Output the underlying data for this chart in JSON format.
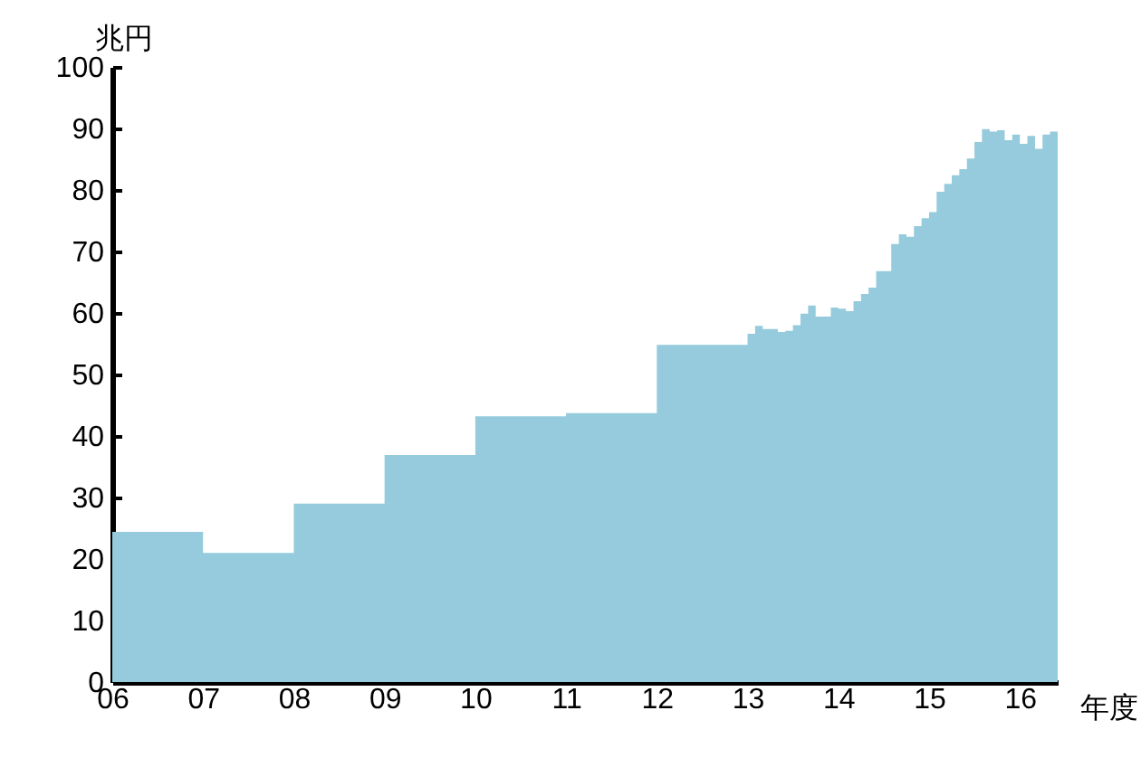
{
  "chart_data": {
    "type": "area",
    "xlabel": "年度",
    "ylabel": "兆円",
    "x": [
      6,
      7,
      8,
      9,
      10,
      11,
      12,
      13,
      13.083,
      13.167,
      13.25,
      13.333,
      13.417,
      13.5,
      13.583,
      13.667,
      13.75,
      13.833,
      13.917,
      14,
      14.083,
      14.167,
      14.25,
      14.333,
      14.417,
      14.5,
      14.583,
      14.667,
      14.75,
      14.833,
      14.917,
      15,
      15.083,
      15.167,
      15.25,
      15.333,
      15.417,
      15.5,
      15.583,
      15.667,
      15.75,
      15.833,
      15.917,
      16,
      16.083,
      16.167,
      16.25,
      16.333,
      16.417
    ],
    "series": [
      {
        "color": "#95cbdc",
        "values": [
          24.4,
          21,
          29,
          36.9,
          43.2,
          43.7,
          54.8,
          56.6,
          57.9,
          57.4,
          57.4,
          56.9,
          57.1,
          58,
          59.9,
          61.2,
          59.4,
          59.4,
          60.9,
          60.7,
          60.3,
          61.9,
          63.1,
          64.1,
          66.8,
          66.8,
          71.2,
          72.8,
          72.4,
          74.1,
          75.4,
          76.4,
          79.7,
          81,
          82.4,
          83.4,
          85.1,
          87.8,
          89.9,
          89.5,
          89.7,
          88.1,
          89,
          87.5,
          88.8,
          86.7,
          89,
          89.5,
          89.5
        ]
      }
    ],
    "xlim": [
      6,
      16.417
    ],
    "xticks": [
      {
        "value": 6,
        "label": "06"
      },
      {
        "value": 7,
        "label": "07"
      },
      {
        "value": 8,
        "label": "08"
      },
      {
        "value": 9,
        "label": "09"
      },
      10,
      11,
      12,
      13,
      14,
      15,
      16
    ],
    "ylim": [
      0,
      100
    ],
    "yticks": [
      0,
      10,
      20,
      30,
      40,
      50,
      60,
      70,
      80,
      90,
      100
    ],
    "grid": false
  }
}
